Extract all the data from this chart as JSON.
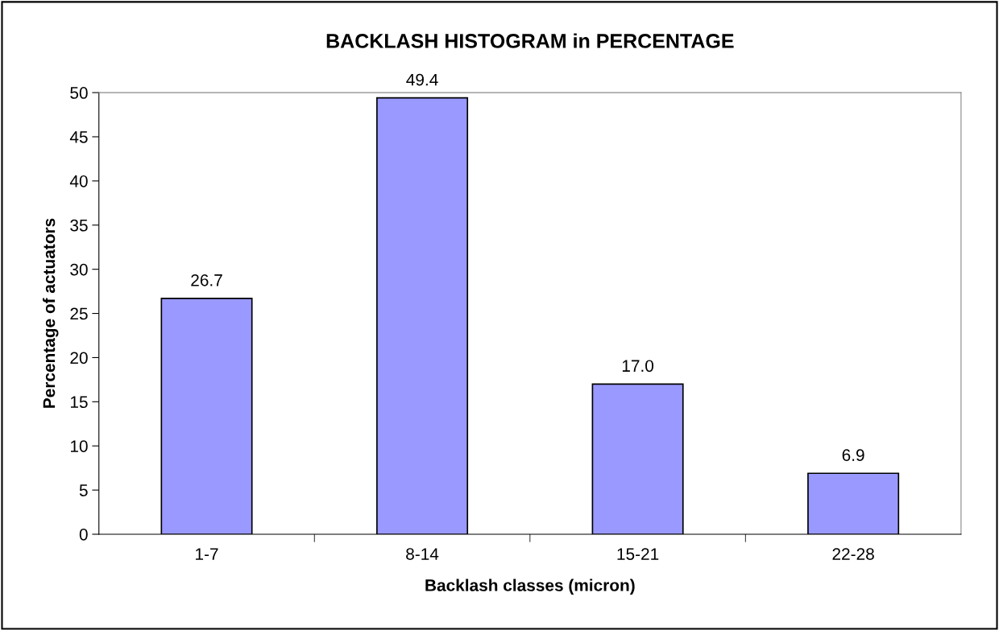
{
  "chart_data": {
    "type": "bar",
    "title": "BACKLASH HISTOGRAM in PERCENTAGE",
    "xlabel": "Backlash classes (micron)",
    "ylabel": "Percentage of actuators",
    "categories": [
      "1-7",
      "8-14",
      "15-21",
      "22-28"
    ],
    "values": [
      26.7,
      49.4,
      17.0,
      6.9
    ],
    "value_labels": [
      "26.7",
      "49.4",
      "17.0",
      "6.9"
    ],
    "color": "#9999ff",
    "ylim": [
      0,
      50
    ],
    "yticks": [
      0,
      5,
      10,
      15,
      20,
      25,
      30,
      35,
      40,
      45,
      50
    ],
    "grid": false,
    "legend": false
  }
}
